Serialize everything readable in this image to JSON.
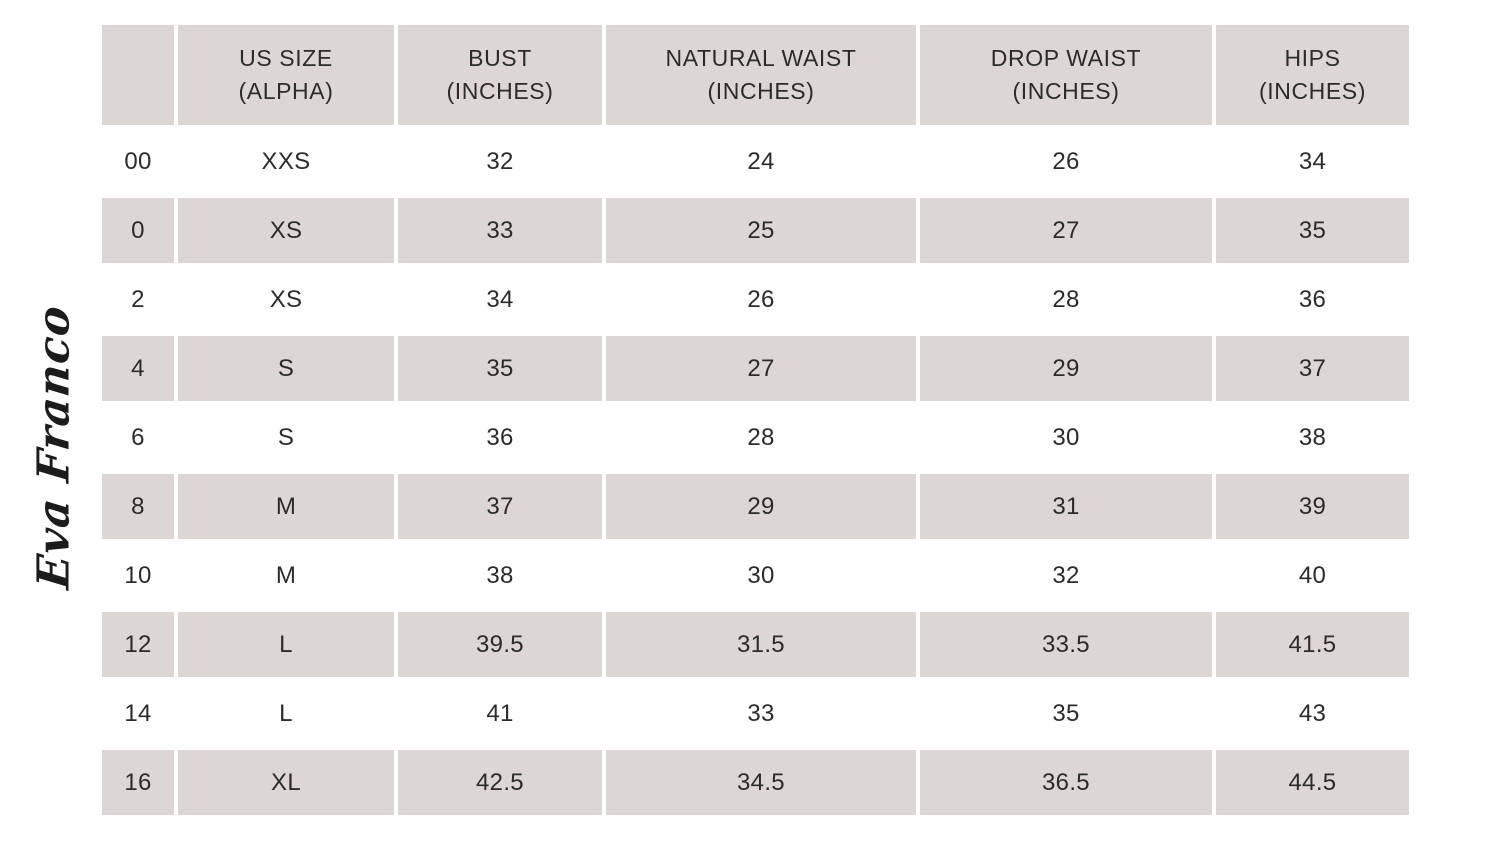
{
  "brand": {
    "logo_text": "Eva Franco"
  },
  "theme": {
    "header_bg": "#dcd7d5",
    "stripe_bg": "#dcd7d5",
    "text_color": "#2b2b2b",
    "page_bg": "#ffffff"
  },
  "table": {
    "columns": [
      "",
      "US SIZE\n(ALPHA)",
      "BUST\n(INCHES)",
      "NATURAL WAIST\n(INCHES)",
      "DROP WAIST\n(INCHES)",
      "HIPS\n(INCHES)"
    ],
    "rows": [
      {
        "cells": [
          "00",
          "XXS",
          "32",
          "24",
          "26",
          "34"
        ]
      },
      {
        "cells": [
          "0",
          "XS",
          "33",
          "25",
          "27",
          "35"
        ]
      },
      {
        "cells": [
          "2",
          "XS",
          "34",
          "26",
          "28",
          "36"
        ]
      },
      {
        "cells": [
          "4",
          "S",
          "35",
          "27",
          "29",
          "37"
        ]
      },
      {
        "cells": [
          "6",
          "S",
          "36",
          "28",
          "30",
          "38"
        ]
      },
      {
        "cells": [
          "8",
          "M",
          "37",
          "29",
          "31",
          "39"
        ]
      },
      {
        "cells": [
          "10",
          "M",
          "38",
          "30",
          "32",
          "40"
        ]
      },
      {
        "cells": [
          "12",
          "L",
          "39.5",
          "31.5",
          "33.5",
          "41.5"
        ]
      },
      {
        "cells": [
          "14",
          "L",
          "41",
          "33",
          "35",
          "43"
        ]
      },
      {
        "cells": [
          "16",
          "XL",
          "42.5",
          "34.5",
          "36.5",
          "44.5"
        ]
      }
    ]
  }
}
